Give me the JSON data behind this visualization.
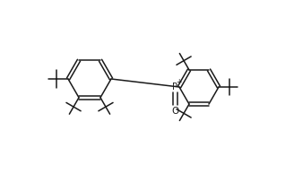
{
  "bg_color": "#ffffff",
  "line_color": "#1a1a1a",
  "line_width": 1.1,
  "fig_width": 3.28,
  "fig_height": 1.94,
  "dpi": 100
}
